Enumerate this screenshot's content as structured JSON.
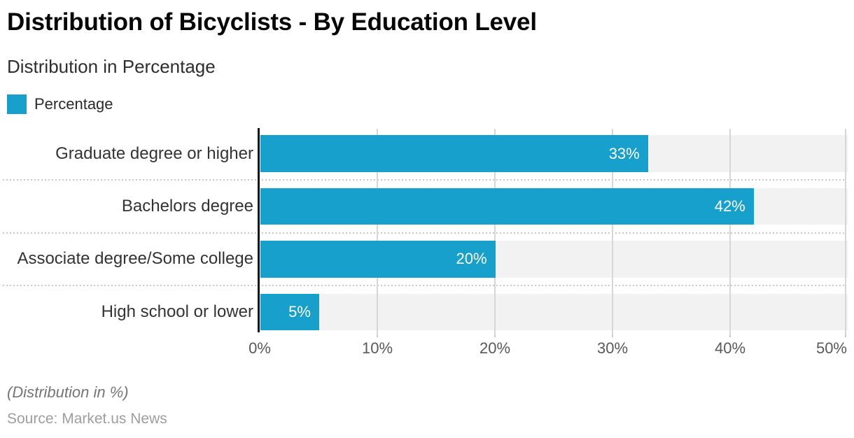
{
  "title": "Distribution of Bicyclists - By Education Level",
  "subtitle": "Distribution in Percentage",
  "legend": {
    "label": "Percentage",
    "swatch_color": "#18A0CC"
  },
  "chart_data": {
    "type": "bar",
    "orientation": "horizontal",
    "title": "Distribution of Bicyclists - By Education Level",
    "series_name": "Percentage",
    "categories": [
      "Graduate degree or higher",
      "Bachelors degree",
      "Associate degree/Some college",
      "High school or lower"
    ],
    "values": [
      33,
      42,
      20,
      5
    ],
    "value_labels": [
      "33%",
      "42%",
      "20%",
      "5%"
    ],
    "xlabel": "",
    "ylabel": "",
    "xlim": [
      0,
      50
    ],
    "axis_ticks": [
      "0%",
      "10%",
      "20%",
      "30%",
      "40%",
      "50%"
    ],
    "grid": "vertical",
    "legend_position": "top-left",
    "bar_color": "#18A0CC",
    "track_color": "#F2F2F2",
    "grid_color": "#D6D6D6",
    "axis_color": "#161616"
  },
  "footer": {
    "note": "(Distribution in %)",
    "source": "Source: Market.us News"
  }
}
